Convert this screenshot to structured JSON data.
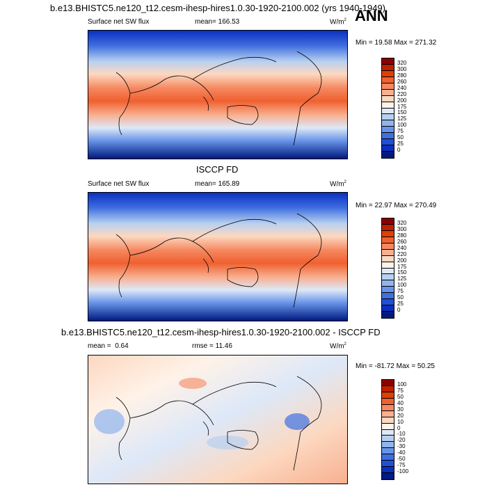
{
  "header": {
    "case_title": "b.e13.BHISTC5.ne120_t12.cesm-ihesp-hires1.0.30-1920-2100.002 (yrs 1940-1949)",
    "season": "ANN"
  },
  "panels": [
    {
      "id": "model",
      "variable": "Surface net SW flux",
      "stat_label": "mean=",
      "stat_value": "166.53",
      "units": "W/m",
      "units_exp": "2",
      "minmax": "Min =  19.58 Max = 271.32",
      "field_mean": 166.53,
      "field_min": 19.58,
      "field_max": 271.32
    },
    {
      "id": "obs",
      "title": "ISCCP FD",
      "variable": "Surface net SW flux",
      "stat_label": "mean=",
      "stat_value": "165.89",
      "units": "W/m",
      "units_exp": "2",
      "minmax": "Min =  22.97 Max = 270.49",
      "field_mean": 165.89,
      "field_min": 22.97,
      "field_max": 270.49
    },
    {
      "id": "diff",
      "title": "b.e13.BHISTC5.ne120_t12.cesm-ihesp-hires1.0.30-1920-2100.002 - ISCCP FD",
      "stat_label": "mean =",
      "stat_value": "0.64",
      "rmse_label": "rmse =",
      "rmse_value": "11.46",
      "units": "W/m",
      "units_exp": "2",
      "minmax": "Min = -81.72 Max =  50.25",
      "field_mean": 0.64,
      "field_rmse": 11.46,
      "field_min": -81.72,
      "field_max": 50.25
    }
  ],
  "colorbars": {
    "abs_levels": [
      "320",
      "300",
      "280",
      "260",
      "240",
      "220",
      "200",
      "175",
      "150",
      "125",
      "100",
      "75",
      "50",
      "25",
      "0"
    ],
    "abs_colors": [
      "#8b0000",
      "#c02000",
      "#e04000",
      "#f06030",
      "#f58860",
      "#f8b090",
      "#fcd8c0",
      "#fff2e8",
      "#dde8f8",
      "#b8d0f0",
      "#90b4ec",
      "#6894e8",
      "#4070e0",
      "#2050d8",
      "#0a30c0",
      "#001a80"
    ],
    "diff_levels": [
      "100",
      "75",
      "50",
      "40",
      "30",
      "20",
      "10",
      "0",
      "-10",
      "-20",
      "-30",
      "-40",
      "-50",
      "-75",
      "-100"
    ],
    "diff_colors": [
      "#8b0000",
      "#c02000",
      "#e04000",
      "#f06030",
      "#f58860",
      "#f8b090",
      "#fcd8c0",
      "#fff2e8",
      "#dde8f8",
      "#b8d0f0",
      "#90b4ec",
      "#6894e8",
      "#4070e0",
      "#2050d8",
      "#0a30c0",
      "#001a80"
    ]
  }
}
